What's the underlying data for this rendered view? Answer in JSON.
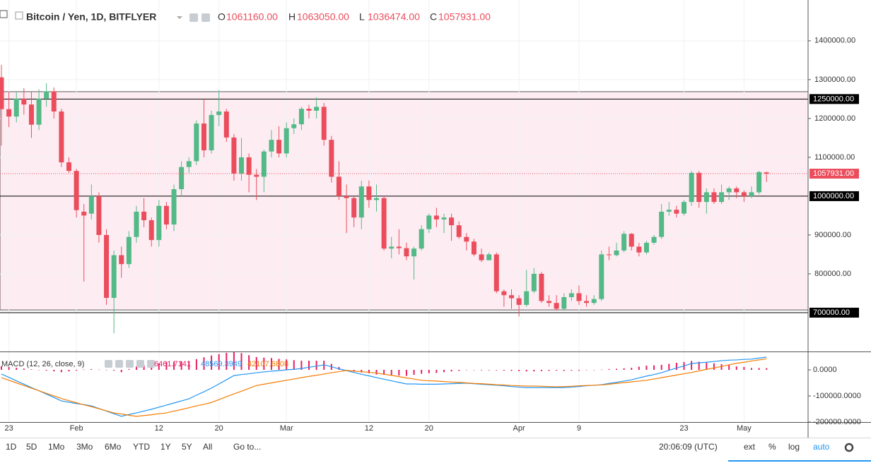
{
  "chart_data": [
    {
      "type": "candlestick",
      "title": "Bitcoin / Yen, 1D, BITFLYER",
      "ohlc_legend": [
        {
          "key": "O",
          "value": 1061160,
          "label": "1061160.00"
        },
        {
          "key": "H",
          "value": 1063050,
          "label": "1063050.00"
        },
        {
          "key": "L",
          "value": 1036474,
          "label": "1036474.00"
        },
        {
          "key": "C",
          "value": 1057931,
          "label": "1057931.00"
        }
      ],
      "x": [
        "Jan 22",
        "Jan 23",
        "Jan 24",
        "Jan 25",
        "Jan 26",
        "Jan 27",
        "Jan 28",
        "Jan 29",
        "Jan 30",
        "Jan 31",
        "Feb 1",
        "Feb 2",
        "Feb 3",
        "Feb 4",
        "Feb 5",
        "Feb 6",
        "Feb 7",
        "Feb 8",
        "Feb 9",
        "Feb 10",
        "Feb 11",
        "Feb 12",
        "Feb 13",
        "Feb 14",
        "Feb 15",
        "Feb 16",
        "Feb 17",
        "Feb 18",
        "Feb 19",
        "Feb 20",
        "Feb 21",
        "Feb 22",
        "Feb 23",
        "Feb 24",
        "Feb 25",
        "Feb 26",
        "Feb 27",
        "Feb 28",
        "Mar 1",
        "Mar 2",
        "Mar 3",
        "Mar 4",
        "Mar 5",
        "Mar 6",
        "Mar 7",
        "Mar 8",
        "Mar 9",
        "Mar 10",
        "Mar 11",
        "Mar 12",
        "Mar 13",
        "Mar 14",
        "Mar 15",
        "Mar 16",
        "Mar 17",
        "Mar 18",
        "Mar 19",
        "Mar 20",
        "Mar 21",
        "Mar 22",
        "Mar 23",
        "Mar 24",
        "Mar 25",
        "Mar 26",
        "Mar 27",
        "Mar 28",
        "Mar 29",
        "Mar 30",
        "Mar 31",
        "Apr 1",
        "Apr 2",
        "Apr 3",
        "Apr 4",
        "Apr 5",
        "Apr 6",
        "Apr 7",
        "Apr 8",
        "Apr 9",
        "Apr 10",
        "Apr 11",
        "Apr 12",
        "Apr 13",
        "Apr 14",
        "Apr 15",
        "Apr 16",
        "Apr 17",
        "Apr 18",
        "Apr 19",
        "Apr 20",
        "Apr 21",
        "Apr 22",
        "Apr 23",
        "Apr 24",
        "Apr 25",
        "Apr 26",
        "Apr 27",
        "Apr 28",
        "Apr 29",
        "Apr 30",
        "May 1",
        "May 2",
        "May 3",
        "May 4"
      ],
      "open": [
        1306000,
        1224000,
        1205000,
        1251000,
        1236000,
        1184000,
        1251000,
        1270000,
        1218000,
        1087000,
        1065000,
        960000,
        955000,
        1000000,
        900000,
        738000,
        848000,
        825000,
        895000,
        960000,
        938000,
        887000,
        975000,
        927000,
        1018000,
        1075000,
        1090000,
        1187000,
        1118000,
        1209000,
        1218000,
        1151000,
        1058000,
        1100000,
        1055000,
        1050000,
        1115000,
        1145000,
        1110000,
        1175000,
        1185000,
        1225000,
        1220000,
        1230000,
        1145000,
        1050000,
        1000000,
        995000,
        945000,
        1025000,
        990000,
        995000,
        865000,
        870000,
        866000,
        845000,
        865000,
        915000,
        950000,
        940000,
        945000,
        925000,
        895000,
        883000,
        850000,
        835000,
        850000,
        755000,
        745000,
        737000,
        720000,
        755000,
        800000,
        730000,
        725000,
        710000,
        740000,
        750000,
        730000,
        725000,
        735000,
        850000,
        848000,
        860000,
        903000,
        870000,
        855000,
        880000,
        895000,
        960000,
        965000,
        955000,
        985000,
        1060000,
        985000,
        1010000,
        985000,
        1010000,
        1020000,
        1010000,
        1000000,
        1010000,
        1061160
      ],
      "high": [
        1338000,
        1269000,
        1269000,
        1278000,
        1270000,
        1275000,
        1291000,
        1280000,
        1225000,
        1100000,
        1070000,
        980000,
        1030000,
        1010000,
        915000,
        860000,
        870000,
        910000,
        975000,
        995000,
        945000,
        990000,
        985000,
        1030000,
        1090000,
        1100000,
        1195000,
        1250000,
        1220000,
        1273000,
        1225000,
        1160000,
        1150000,
        1110000,
        1070000,
        1120000,
        1170000,
        1180000,
        1190000,
        1200000,
        1230000,
        1235000,
        1255000,
        1240000,
        1155000,
        1090000,
        1030000,
        1000000,
        1040000,
        1040000,
        1030000,
        1000000,
        895000,
        915000,
        880000,
        870000,
        925000,
        955000,
        970000,
        955000,
        955000,
        935000,
        905000,
        890000,
        865000,
        855000,
        855000,
        760000,
        760000,
        745000,
        810000,
        815000,
        805000,
        745000,
        745000,
        750000,
        760000,
        770000,
        745000,
        745000,
        860000,
        870000,
        880000,
        910000,
        905000,
        880000,
        885000,
        900000,
        980000,
        985000,
        975000,
        990000,
        1065000,
        1065000,
        1020000,
        1020000,
        1030000,
        1025000,
        1025000,
        1015000,
        1025000,
        1065000,
        1063050
      ],
      "low": [
        1130000,
        1178000,
        1190000,
        1210000,
        1150000,
        1170000,
        1230000,
        1200000,
        1075000,
        1060000,
        945000,
        780000,
        940000,
        880000,
        720000,
        647000,
        790000,
        815000,
        880000,
        920000,
        870000,
        870000,
        915000,
        910000,
        1000000,
        1060000,
        1080000,
        1100000,
        1110000,
        1180000,
        1140000,
        1040000,
        1040000,
        1010000,
        990000,
        1010000,
        1100000,
        1100000,
        1100000,
        1160000,
        1170000,
        1200000,
        1200000,
        1130000,
        1035000,
        990000,
        905000,
        920000,
        915000,
        970000,
        960000,
        860000,
        840000,
        850000,
        835000,
        785000,
        860000,
        905000,
        920000,
        905000,
        885000,
        890000,
        860000,
        845000,
        830000,
        835000,
        750000,
        715000,
        710000,
        690000,
        715000,
        750000,
        725000,
        715000,
        705000,
        705000,
        730000,
        720000,
        715000,
        720000,
        730000,
        835000,
        845000,
        855000,
        860000,
        845000,
        850000,
        875000,
        890000,
        950000,
        945000,
        950000,
        975000,
        970000,
        955000,
        980000,
        980000,
        990000,
        995000,
        985000,
        995000,
        1005000,
        1036474
      ],
      "close": [
        1224000,
        1205000,
        1251000,
        1236000,
        1184000,
        1251000,
        1270000,
        1218000,
        1087000,
        1065000,
        964000,
        950000,
        1000000,
        900000,
        738000,
        848000,
        825000,
        895000,
        960000,
        938000,
        887000,
        975000,
        927000,
        1018000,
        1075000,
        1090000,
        1187000,
        1118000,
        1209000,
        1218000,
        1151000,
        1058000,
        1100000,
        1055000,
        1050000,
        1115000,
        1145000,
        1110000,
        1175000,
        1185000,
        1225000,
        1220000,
        1230000,
        1145000,
        1050000,
        1000000,
        995000,
        945000,
        1025000,
        990000,
        995000,
        865000,
        870000,
        866000,
        845000,
        865000,
        915000,
        950000,
        940000,
        945000,
        925000,
        895000,
        883000,
        850000,
        835000,
        850000,
        755000,
        745000,
        737000,
        720000,
        755000,
        800000,
        730000,
        725000,
        710000,
        740000,
        750000,
        730000,
        725000,
        735000,
        850000,
        848000,
        860000,
        903000,
        870000,
        855000,
        880000,
        895000,
        960000,
        965000,
        955000,
        985000,
        1060000,
        985000,
        1010000,
        985000,
        1010000,
        1020000,
        1010000,
        1000000,
        1010000,
        1062000,
        1057931
      ],
      "colors": {
        "up": "#53b987",
        "down": "#eb4d5c"
      },
      "ylim": [
        600000,
        1496000
      ],
      "yticks": [
        {
          "value": 800000,
          "label": "800000.00"
        },
        {
          "value": 900000,
          "label": "900000.00"
        },
        {
          "value": 1100000,
          "label": "1100000.00"
        },
        {
          "value": 1200000,
          "label": "1200000.00"
        },
        {
          "value": 1300000,
          "label": "1300000.00"
        },
        {
          "value": 1400000,
          "label": "1400000.00"
        }
      ],
      "xticks": [
        {
          "value": "Jan 23",
          "label": "23"
        },
        {
          "value": "Feb 1",
          "label": "Feb"
        },
        {
          "value": "Feb 12",
          "label": "12"
        },
        {
          "value": "Feb 20",
          "label": "20"
        },
        {
          "value": "Mar 1",
          "label": "Mar"
        },
        {
          "value": "Mar 12",
          "label": "12"
        },
        {
          "value": "Mar 20",
          "label": "20"
        },
        {
          "value": "Apr 1",
          "label": "Apr"
        },
        {
          "value": "Apr 9",
          "label": "9"
        },
        {
          "value": "Apr 23",
          "label": "23"
        },
        {
          "value": "May 1",
          "label": "May"
        }
      ],
      "levels": [
        {
          "value": 1250000,
          "label": "1250000.00"
        },
        {
          "value": 1000000,
          "label": "1000000.00"
        },
        {
          "value": 700000,
          "label": "700000.00"
        }
      ],
      "zone": [
        707000,
        1269000
      ],
      "last_price": {
        "value": 1057931,
        "label": "1057931.00"
      },
      "grid": true
    },
    {
      "type": "macd",
      "title": "MACD (12, 26, close, 9)",
      "ylim": [
        -200000,
        64865
      ],
      "yticks": [
        {
          "value": 0,
          "label": "0.0000"
        },
        {
          "value": -100000,
          "label": "-100000.0000"
        },
        {
          "value": -200000,
          "label": "-200000.0000"
        }
      ],
      "series": [
        {
          "style": "histogram",
          "color": "#e91e63",
          "last_label": "6461.7141",
          "values": [
            14000,
            11000,
            8000,
            5000,
            2000,
            0,
            -3000,
            -6000,
            -9000,
            -6000,
            -3000,
            1000,
            3000,
            1000,
            -1000,
            -3000,
            -9000,
            3000,
            13000,
            17000,
            21000,
            25000,
            30000,
            31000,
            33000,
            34000,
            41000,
            48000,
            55000,
            60000,
            65000,
            70000,
            64000,
            56000,
            49000,
            47000,
            45000,
            42000,
            40000,
            37000,
            35000,
            35000,
            35000,
            35000,
            23000,
            11000,
            -1000,
            -5000,
            -10000,
            -13000,
            -18000,
            -19000,
            -21000,
            -22000,
            -23000,
            -19000,
            -15000,
            -13000,
            -12000,
            -9000,
            -6000,
            -4000,
            -1000,
            -1000,
            -2000,
            -2000,
            -2000,
            -3000,
            -4000,
            -5000,
            -6000,
            -6000,
            -5000,
            -4000,
            -3000,
            -4000,
            -3000,
            -3000,
            -1000,
            0,
            1000,
            3000,
            4000,
            6000,
            8000,
            12000,
            16000,
            17000,
            19000,
            23000,
            27000,
            30000,
            34000,
            31000,
            27000,
            25000,
            22000,
            18000,
            13000,
            11000,
            7000,
            7000,
            6461.7141
          ]
        },
        {
          "style": "line",
          "color": "#2196f3",
          "last_label": "48569.3949",
          "values": [
            -16000,
            -29000,
            -42000,
            -55000,
            -68000,
            -80000,
            -93000,
            -106000,
            -119000,
            -124000,
            -129000,
            -133000,
            -138000,
            -148000,
            -158000,
            -168000,
            -178000,
            -171000,
            -165000,
            -158000,
            -151000,
            -143000,
            -135000,
            -127000,
            -119000,
            -111000,
            -97000,
            -84000,
            -70000,
            -54000,
            -38000,
            -22000,
            -18000,
            -15000,
            -11000,
            -8000,
            -5000,
            -3000,
            0,
            2000,
            5000,
            10000,
            14000,
            19000,
            12000,
            4000,
            -3000,
            -10000,
            -17000,
            -23000,
            -30000,
            -36000,
            -42000,
            -48000,
            -54000,
            -54000,
            -55000,
            -55000,
            -55000,
            -54000,
            -53000,
            -52000,
            -51000,
            -53000,
            -55000,
            -57000,
            -59000,
            -61000,
            -64000,
            -66000,
            -68000,
            -68000,
            -68000,
            -68000,
            -68000,
            -68000,
            -66000,
            -64000,
            -61000,
            -59000,
            -57000,
            -52000,
            -48000,
            -43000,
            -38000,
            -31000,
            -24000,
            -18000,
            -11000,
            -2000,
            7000,
            15000,
            24000,
            27000,
            29000,
            32000,
            35000,
            37000,
            38000,
            40000,
            41000,
            45000,
            48569.3949
          ]
        },
        {
          "style": "line",
          "color": "#f57c00",
          "last_label": "42107.6808",
          "values": [
            -30000,
            -40000,
            -50000,
            -60000,
            -70000,
            -80000,
            -90000,
            -100000,
            -110000,
            -118000,
            -126000,
            -134000,
            -141000,
            -149000,
            -157000,
            -165000,
            -169000,
            -174000,
            -178000,
            -175000,
            -172000,
            -168000,
            -165000,
            -158000,
            -152000,
            -145000,
            -138000,
            -132000,
            -125000,
            -114000,
            -103000,
            -92000,
            -82000,
            -71000,
            -60000,
            -55000,
            -50000,
            -45000,
            -40000,
            -35000,
            -30000,
            -25000,
            -21000,
            -16000,
            -11000,
            -7000,
            -2000,
            -5000,
            -7000,
            -10000,
            -12000,
            -17000,
            -21000,
            -26000,
            -31000,
            -35000,
            -40000,
            -42000,
            -43000,
            -45000,
            -47000,
            -48000,
            -50000,
            -52000,
            -53000,
            -55000,
            -57000,
            -58000,
            -60000,
            -61000,
            -62000,
            -62000,
            -63000,
            -64000,
            -65000,
            -64000,
            -63000,
            -61000,
            -60000,
            -59000,
            -58000,
            -55000,
            -52000,
            -49000,
            -46000,
            -43000,
            -40000,
            -35000,
            -30000,
            -25000,
            -20000,
            -15000,
            -10000,
            -4000,
            2000,
            7000,
            13000,
            19000,
            25000,
            29000,
            34000,
            38000,
            42107.6808
          ]
        }
      ]
    }
  ],
  "toolbar": {
    "ranges": [
      "1D",
      "5D",
      "1Mo",
      "3Mo",
      "6Mo",
      "YTD",
      "1Y",
      "5Y",
      "All"
    ],
    "goto": "Go to...",
    "time": "20:06:09 (UTC)",
    "options": [
      "ext",
      "%",
      "log",
      "auto"
    ]
  }
}
